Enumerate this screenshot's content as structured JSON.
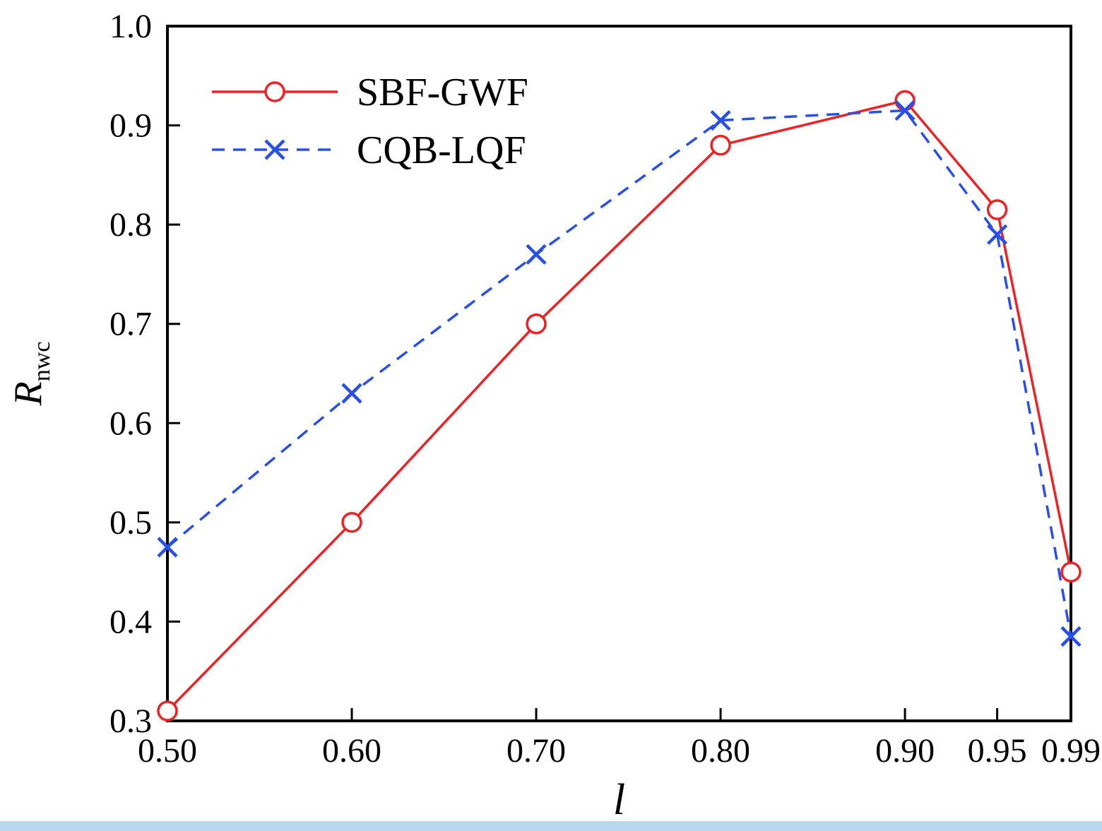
{
  "chart_data": {
    "type": "line",
    "title": "",
    "xlabel": "l",
    "ylabel_main": "R",
    "ylabel_sub": "nwc",
    "x": [
      0.5,
      0.6,
      0.7,
      0.8,
      0.9,
      0.95,
      0.99
    ],
    "x_tick_labels": [
      "0.50",
      "0.60",
      "0.70",
      "0.80",
      "0.90",
      "0.95",
      "0.99"
    ],
    "xlim": [
      0.5,
      0.99
    ],
    "y_ticks": [
      0.3,
      0.4,
      0.5,
      0.6,
      0.7,
      0.8,
      0.9,
      1.0
    ],
    "y_tick_labels": [
      "0.3",
      "0.4",
      "0.5",
      "0.6",
      "0.7",
      "0.8",
      "0.9",
      "1.0"
    ],
    "ylim": [
      0.3,
      1.0
    ],
    "grid": false,
    "legend_position": "top-left",
    "series": [
      {
        "name": "SBF-GWF",
        "color": "#ee2224",
        "line_style": "solid",
        "marker": "circle",
        "values": [
          0.31,
          0.5,
          0.7,
          0.88,
          0.925,
          0.815,
          0.45
        ]
      },
      {
        "name": "CQB-LQF",
        "color": "#2850e8",
        "line_style": "dashed",
        "marker": "x",
        "values": [
          0.475,
          0.63,
          0.77,
          0.905,
          0.915,
          0.79,
          0.385
        ]
      }
    ]
  },
  "colors": {
    "axis": "#000000",
    "background": "#ffffff",
    "bottom_strip": "#b9d7ee"
  }
}
